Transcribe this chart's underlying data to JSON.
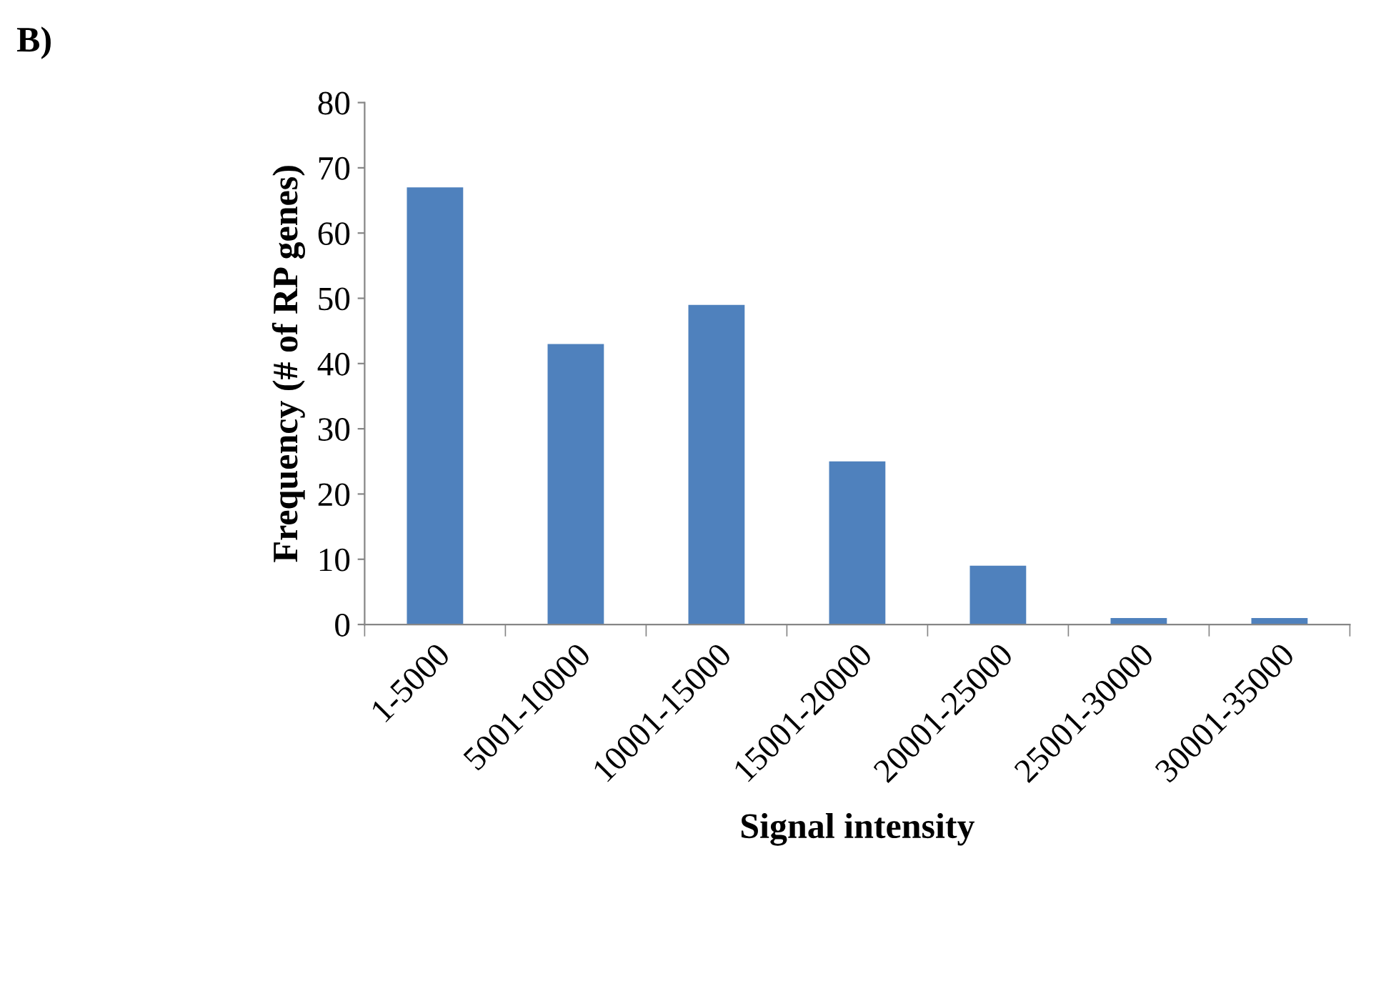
{
  "chart_data": {
    "type": "bar",
    "xlabel": "Signal intensity",
    "ylabel": "Frequency (# of RP genes)",
    "annotations": [
      "B)"
    ],
    "categories": [
      "1-5000",
      "5001-10000",
      "10001-15000",
      "15001-20000",
      "20001-25000",
      "25001-30000",
      "30001-35000"
    ],
    "values": [
      67,
      43,
      49,
      25,
      9,
      1,
      1
    ],
    "color": "#4f81bd",
    "ylim": [
      0,
      80
    ],
    "yticks": [
      0,
      10,
      20,
      30,
      40,
      50,
      60,
      70,
      80
    ],
    "grid": false,
    "legend": false
  }
}
